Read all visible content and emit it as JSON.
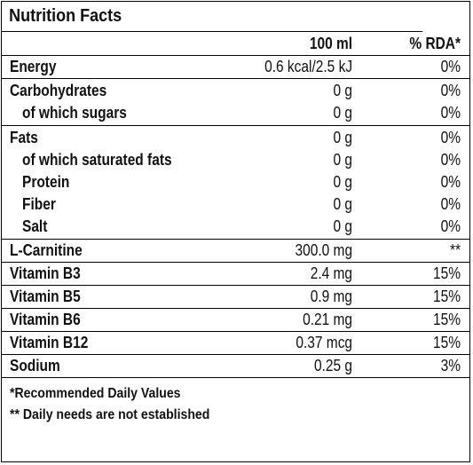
{
  "title": "Nutrition Facts",
  "header": {
    "amount": "100 ml",
    "rda": "% RDA*"
  },
  "rows": [
    {
      "lines": [
        {
          "name": "Energy",
          "amount": "0.6 kcal/2.5 kJ",
          "rda": "0%"
        }
      ]
    },
    {
      "lines": [
        {
          "name": "Carbohydrates",
          "amount": "0 g",
          "rda": "0%"
        },
        {
          "name": "of which sugars",
          "amount": "0 g",
          "rda": "0%"
        }
      ]
    },
    {
      "lines": [
        {
          "name": "Fats",
          "amount": "0 g",
          "rda": "0%"
        },
        {
          "name": "of which saturated fats",
          "amount": "0 g",
          "rda": "0%"
        },
        {
          "name": "Protein",
          "amount": "0 g",
          "rda": "0%"
        },
        {
          "name": "Fiber",
          "amount": "0 g",
          "rda": "0%"
        },
        {
          "name": "Salt",
          "amount": "0 g",
          "rda": "0%"
        }
      ]
    },
    {
      "lines": [
        {
          "name": "L-Carnitine",
          "amount": "300.0 mg",
          "rda": "**"
        }
      ]
    },
    {
      "lines": [
        {
          "name": "Vitamin B3",
          "amount": "2.4 mg",
          "rda": "15%"
        }
      ]
    },
    {
      "lines": [
        {
          "name": "Vitamin B5",
          "amount": "0.9 mg",
          "rda": "15%"
        }
      ]
    },
    {
      "lines": [
        {
          "name": "Vitamin B6",
          "amount": "0.21 mg",
          "rda": "15%"
        }
      ]
    },
    {
      "lines": [
        {
          "name": "Vitamin B12",
          "amount": "0.37 mcg",
          "rda": "15%"
        }
      ]
    },
    {
      "lines": [
        {
          "name": "Sodium",
          "amount": "0.25 g",
          "rda": "3%"
        }
      ]
    }
  ],
  "footer": {
    "note1": "*Recommended Daily Values",
    "note2": "** Daily needs are not established"
  }
}
